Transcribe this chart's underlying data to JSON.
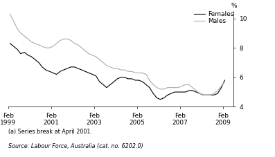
{
  "ylabel": "%",
  "xlim_start": 1999.0,
  "xlim_end": 2009.5,
  "ylim": [
    4,
    10.5
  ],
  "yticks": [
    4,
    6,
    8,
    10
  ],
  "xtick_years": [
    1999,
    2001,
    2003,
    2005,
    2007,
    2009
  ],
  "footnote1": "(a) Series break at April 2001.",
  "footnote2": "Source: Labour Force, Australia (cat. no. 6202.0)",
  "females_color": "#000000",
  "males_color": "#aaaaaa",
  "background_color": "#ffffff",
  "linewidth": 0.8,
  "females_x": [
    1999.08,
    1999.25,
    1999.42,
    1999.58,
    1999.75,
    1999.92,
    2000.08,
    2000.25,
    2000.42,
    2000.58,
    2000.75,
    2000.92,
    2001.08,
    2001.25,
    2001.42,
    2001.58,
    2001.75,
    2001.92,
    2002.08,
    2002.25,
    2002.42,
    2002.58,
    2002.75,
    2002.92,
    2003.08,
    2003.25,
    2003.42,
    2003.58,
    2003.75,
    2003.92,
    2004.08,
    2004.25,
    2004.42,
    2004.58,
    2004.75,
    2004.92,
    2005.08,
    2005.25,
    2005.42,
    2005.58,
    2005.75,
    2005.92,
    2006.08,
    2006.25,
    2006.42,
    2006.58,
    2006.75,
    2006.92,
    2007.08,
    2007.25,
    2007.42,
    2007.58,
    2007.75,
    2007.92,
    2008.08,
    2008.25,
    2008.42,
    2008.58,
    2008.75,
    2008.92,
    2009.08
  ],
  "females_y": [
    8.3,
    8.1,
    7.9,
    7.6,
    7.7,
    7.5,
    7.4,
    7.2,
    7.0,
    6.7,
    6.5,
    6.4,
    6.3,
    6.2,
    6.4,
    6.5,
    6.6,
    6.7,
    6.7,
    6.6,
    6.5,
    6.4,
    6.3,
    6.2,
    6.1,
    5.7,
    5.5,
    5.3,
    5.5,
    5.7,
    5.9,
    6.0,
    6.0,
    5.9,
    5.9,
    5.8,
    5.8,
    5.7,
    5.5,
    5.3,
    4.9,
    4.6,
    4.5,
    4.6,
    4.8,
    4.9,
    5.0,
    5.0,
    5.0,
    5.0,
    5.1,
    5.1,
    5.0,
    4.9,
    4.8,
    4.8,
    4.8,
    4.8,
    4.9,
    5.3,
    5.8
  ],
  "males_x": [
    1999.08,
    1999.25,
    1999.42,
    1999.58,
    1999.75,
    1999.92,
    2000.08,
    2000.25,
    2000.42,
    2000.58,
    2000.75,
    2000.92,
    2001.08,
    2001.25,
    2001.42,
    2001.58,
    2001.75,
    2001.92,
    2002.08,
    2002.25,
    2002.42,
    2002.58,
    2002.75,
    2002.92,
    2003.08,
    2003.25,
    2003.42,
    2003.58,
    2003.75,
    2003.92,
    2004.08,
    2004.25,
    2004.42,
    2004.58,
    2004.75,
    2004.92,
    2005.08,
    2005.25,
    2005.42,
    2005.58,
    2005.75,
    2005.92,
    2006.08,
    2006.25,
    2006.42,
    2006.58,
    2006.75,
    2006.92,
    2007.08,
    2007.25,
    2007.42,
    2007.58,
    2007.75,
    2007.92,
    2008.08,
    2008.25,
    2008.42,
    2008.58,
    2008.75,
    2008.92,
    2009.08
  ],
  "males_y": [
    10.3,
    9.8,
    9.3,
    9.0,
    8.8,
    8.6,
    8.4,
    8.3,
    8.2,
    8.1,
    8.0,
    8.0,
    8.1,
    8.3,
    8.5,
    8.6,
    8.6,
    8.5,
    8.3,
    8.2,
    8.0,
    7.8,
    7.6,
    7.5,
    7.4,
    7.2,
    7.0,
    6.8,
    6.7,
    6.6,
    6.6,
    6.5,
    6.5,
    6.4,
    6.4,
    6.3,
    6.3,
    6.3,
    6.2,
    5.8,
    5.5,
    5.3,
    5.2,
    5.2,
    5.3,
    5.3,
    5.3,
    5.3,
    5.4,
    5.5,
    5.5,
    5.3,
    5.1,
    4.9,
    4.8,
    4.8,
    4.8,
    4.9,
    5.1,
    5.4,
    5.7
  ]
}
